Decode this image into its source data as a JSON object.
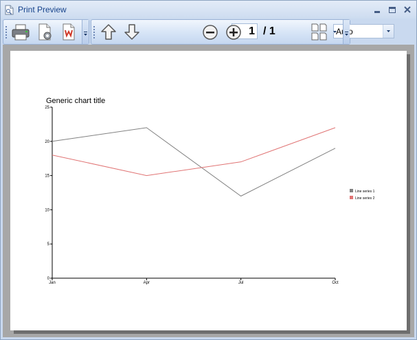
{
  "window": {
    "title": "Print Preview",
    "controls": {
      "minimize": "minimize",
      "maximize": "maximize",
      "close": "close"
    }
  },
  "toolbar": {
    "buttons": [
      "printer-icon",
      "page-setup-icon",
      "export-document-icon",
      "previous-page-icon",
      "next-page-icon",
      "zoom-out-icon",
      "zoom-in-icon",
      "multiple-pages-icon"
    ],
    "page_number": "1",
    "page_total": "/ 1",
    "zoom": "Auto"
  },
  "chart_data": {
    "type": "line",
    "title": "Generic chart title",
    "categories": [
      "Jan",
      "Apr",
      "Jul",
      "Oct"
    ],
    "x": [
      0,
      3,
      6,
      9
    ],
    "series": [
      {
        "name": "Line series 1",
        "values": [
          20,
          22,
          12,
          19
        ],
        "color": "#808080"
      },
      {
        "name": "Line series 2",
        "values": [
          18,
          15,
          17,
          22
        ],
        "color": "#e07373"
      }
    ],
    "ylim": [
      0,
      25
    ],
    "yticks": [
      0,
      5,
      10,
      15,
      20,
      25
    ],
    "xlabel": "",
    "ylabel": "",
    "grid": false,
    "legend": "right"
  }
}
